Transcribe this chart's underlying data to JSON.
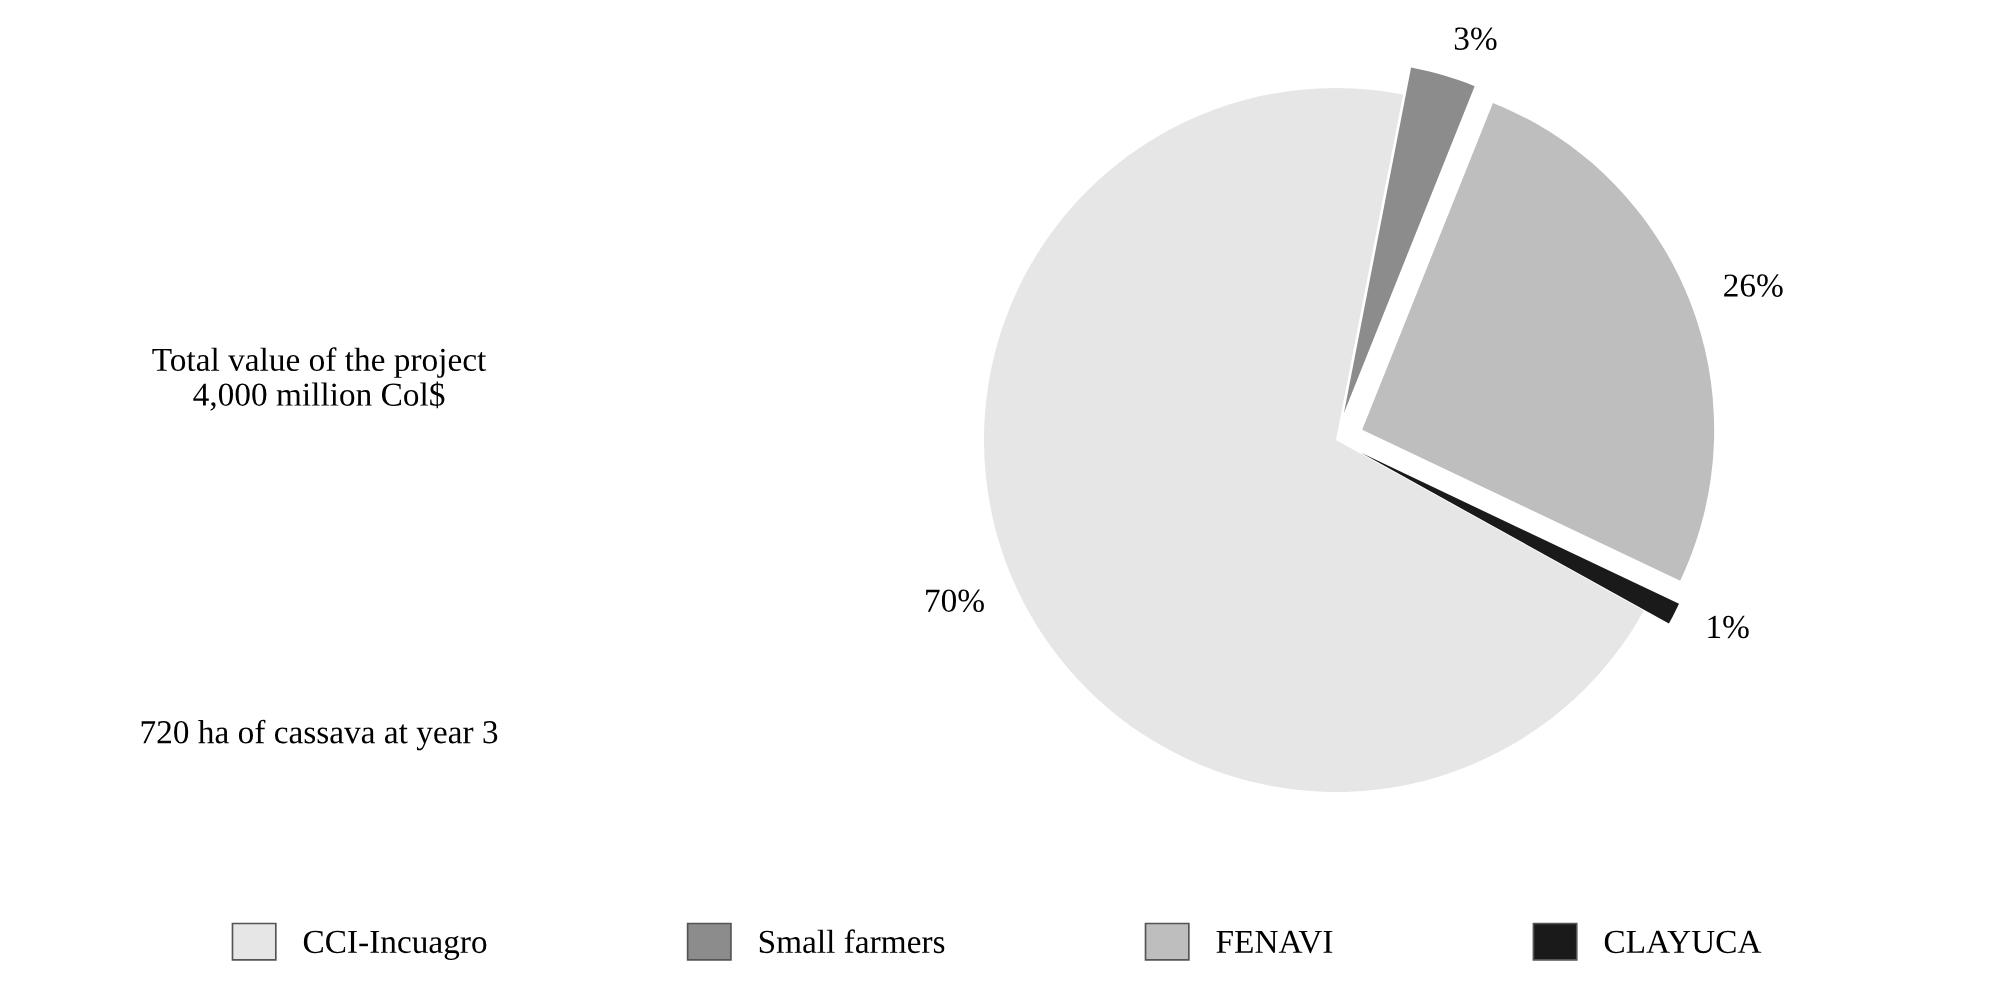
{
  "chart_data": {
    "type": "pie",
    "categories": [
      "CCI-Incuagro",
      "Small farmers",
      "FENAVI",
      "CLAYUCA"
    ],
    "values": [
      70,
      3,
      26,
      1
    ],
    "value_labels": [
      "70%",
      "3%",
      "26%",
      "1%"
    ],
    "colors": [
      "#e6e6e6",
      "#8c8c8c",
      "#bebebe",
      "#1a1a1a"
    ],
    "legend": "bottom",
    "annotations": [
      "Total value of the project\n4,000 million Col$",
      "720 ha of cassava at year 3"
    ]
  }
}
